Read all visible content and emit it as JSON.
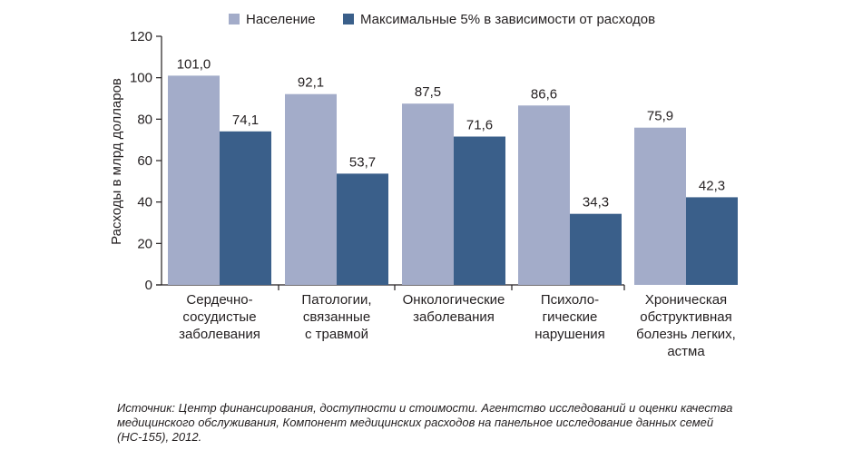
{
  "chart_data": {
    "type": "bar",
    "ylabel": "Расходы в млрд долларов",
    "xlabel": "",
    "ylim": [
      0,
      120
    ],
    "yticks": [
      0,
      20,
      40,
      60,
      80,
      100,
      120
    ],
    "categories": [
      [
        "Сердечно-",
        "сосудистые",
        "заболевания"
      ],
      [
        "Патологии,",
        "связанные",
        "с травмой"
      ],
      [
        "Онкологические",
        "заболевания"
      ],
      [
        "Психоло-",
        "гические",
        "нарушения"
      ],
      [
        "Хроническая",
        "обструктивная",
        "болезнь легких,",
        "астма"
      ]
    ],
    "series": [
      {
        "name": "Население",
        "color": "#a3acc9",
        "values": [
          101.0,
          92.1,
          87.5,
          86.6,
          75.9
        ],
        "labels": [
          "101,0",
          "92,1",
          "87,5",
          "86,6",
          "75,9"
        ]
      },
      {
        "name": "Максимальные 5% в зависимости от расходов",
        "color": "#3a5f8a",
        "values": [
          74.1,
          53.7,
          71.6,
          34.3,
          42.3
        ],
        "labels": [
          "74,1",
          "53,7",
          "71,6",
          "34,3",
          "42,3"
        ]
      }
    ],
    "legend_position": "top",
    "grid": false
  },
  "source_note": "Источник: Центр финансирования, доступности и стоимости. Агентство исследований и оценки качества медицинского обслуживания, Компонент медицинских расходов на панельное исследование данных семей (НС-155), 2012."
}
